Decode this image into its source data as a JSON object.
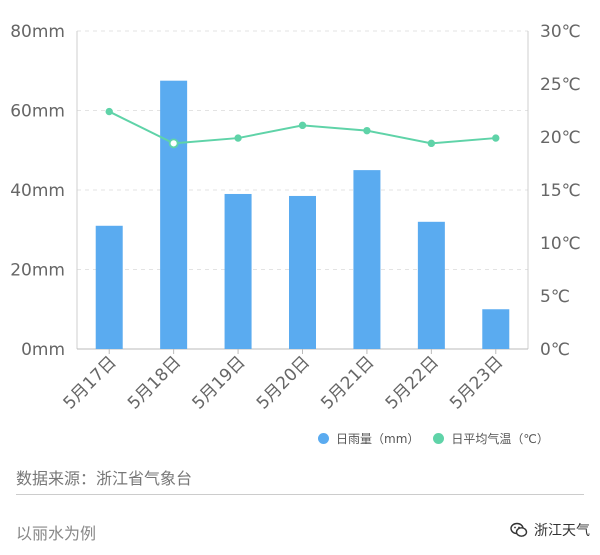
{
  "chart_data": {
    "type": "bar",
    "categories": [
      "5月17日",
      "5月18日",
      "5月19日",
      "5月20日",
      "5月21日",
      "5月22日",
      "5月23日"
    ],
    "series": [
      {
        "name": "日雨量（mm）",
        "type": "bar",
        "axis": "left",
        "color": "#5aabf0",
        "values": [
          31,
          67.5,
          39,
          38.5,
          45,
          32,
          10
        ]
      },
      {
        "name": "日平均气温（℃）",
        "type": "line",
        "axis": "right",
        "color": "#5fd3a8",
        "values": [
          22.4,
          19.4,
          19.9,
          21.1,
          20.6,
          19.4,
          19.9
        ]
      }
    ],
    "y_left": {
      "ticks": [
        "0mm",
        "20mm",
        "40mm",
        "60mm",
        "80mm"
      ],
      "ylim": [
        0,
        80
      ]
    },
    "y_right": {
      "ticks": [
        "0℃",
        "5℃",
        "10℃",
        "15℃",
        "20℃",
        "25℃",
        "30℃"
      ],
      "ylim": [
        0,
        30
      ]
    },
    "grid": "dashed horizontal",
    "legend_position": "bottom-right"
  },
  "footer": {
    "source": "数据来源：浙江省气象台",
    "note": "以丽水为例",
    "brand": "浙江天气"
  }
}
